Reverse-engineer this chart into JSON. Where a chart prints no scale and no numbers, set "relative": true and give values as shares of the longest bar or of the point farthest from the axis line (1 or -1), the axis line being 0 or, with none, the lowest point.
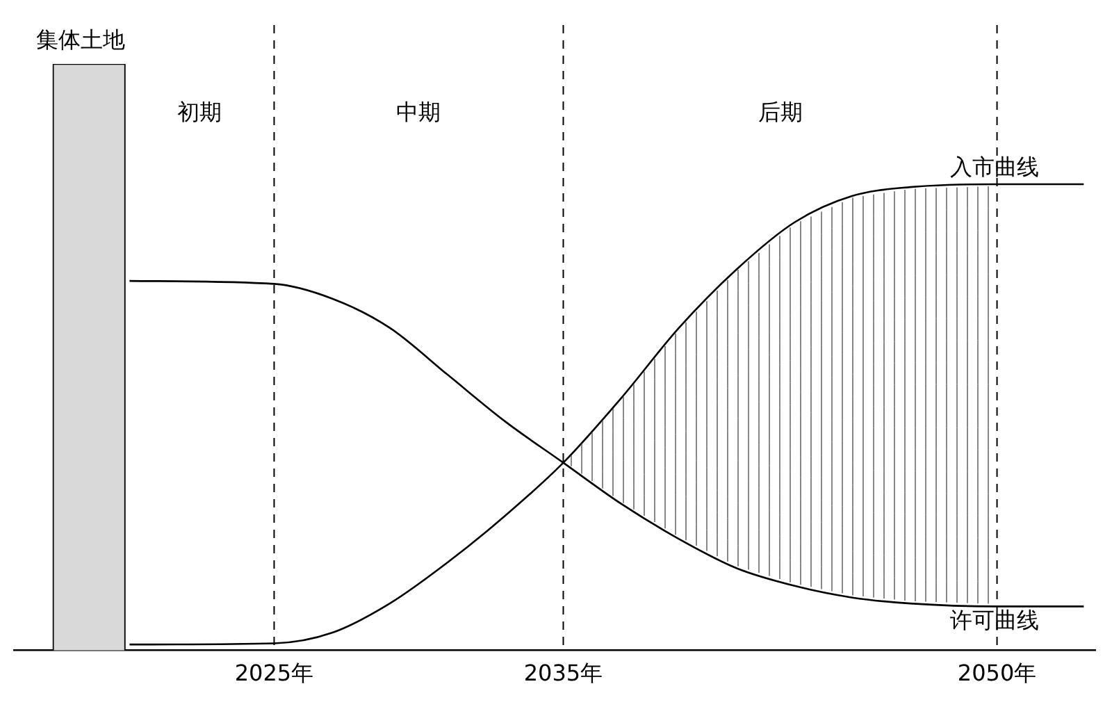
{
  "chart_data": {
    "type": "line",
    "relative": true,
    "xlim": [
      2016,
      2053.4
    ],
    "xticks": [
      {
        "value": 2025,
        "label": "2025年"
      },
      {
        "value": 2035,
        "label": "2035年"
      },
      {
        "value": 2050,
        "label": "2050年"
      }
    ],
    "series": [
      {
        "name": "集体土地",
        "type": "bar",
        "color": "#d9d9d9",
        "x": [
          2018.6
        ],
        "values": [
          1
        ]
      },
      {
        "name": "入市曲线",
        "color": "#000000",
        "x": [
          2020,
          2025,
          2027,
          2029,
          2031,
          2033,
          2035,
          2037,
          2039,
          2041,
          2043,
          2045,
          2047,
          2050,
          2053
        ],
        "values": [
          0.01,
          0.012,
          0.03,
          0.08,
          0.15,
          0.23,
          0.32,
          0.43,
          0.55,
          0.65,
          0.73,
          0.775,
          0.79,
          0.795,
          0.795
        ]
      },
      {
        "name": "许可曲线",
        "color": "#000000",
        "x": [
          2020,
          2025,
          2027,
          2029,
          2031,
          2033,
          2035,
          2037,
          2039,
          2041,
          2043,
          2045,
          2047,
          2050,
          2053
        ],
        "values": [
          0.63,
          0.625,
          0.6,
          0.55,
          0.47,
          0.39,
          0.32,
          0.25,
          0.19,
          0.14,
          0.11,
          0.09,
          0.08,
          0.075,
          0.075
        ]
      }
    ],
    "ref_lines": [
      {
        "axis": "x",
        "value": 2025,
        "line_style": "dashed"
      },
      {
        "axis": "x",
        "value": 2035,
        "line_style": "dashed"
      },
      {
        "axis": "x",
        "value": 2050,
        "line_style": "dashed"
      }
    ],
    "annotations": [
      "初期",
      "中期",
      "后期"
    ],
    "grid": false,
    "legend": false,
    "marker": "none",
    "line_style": "solid"
  }
}
